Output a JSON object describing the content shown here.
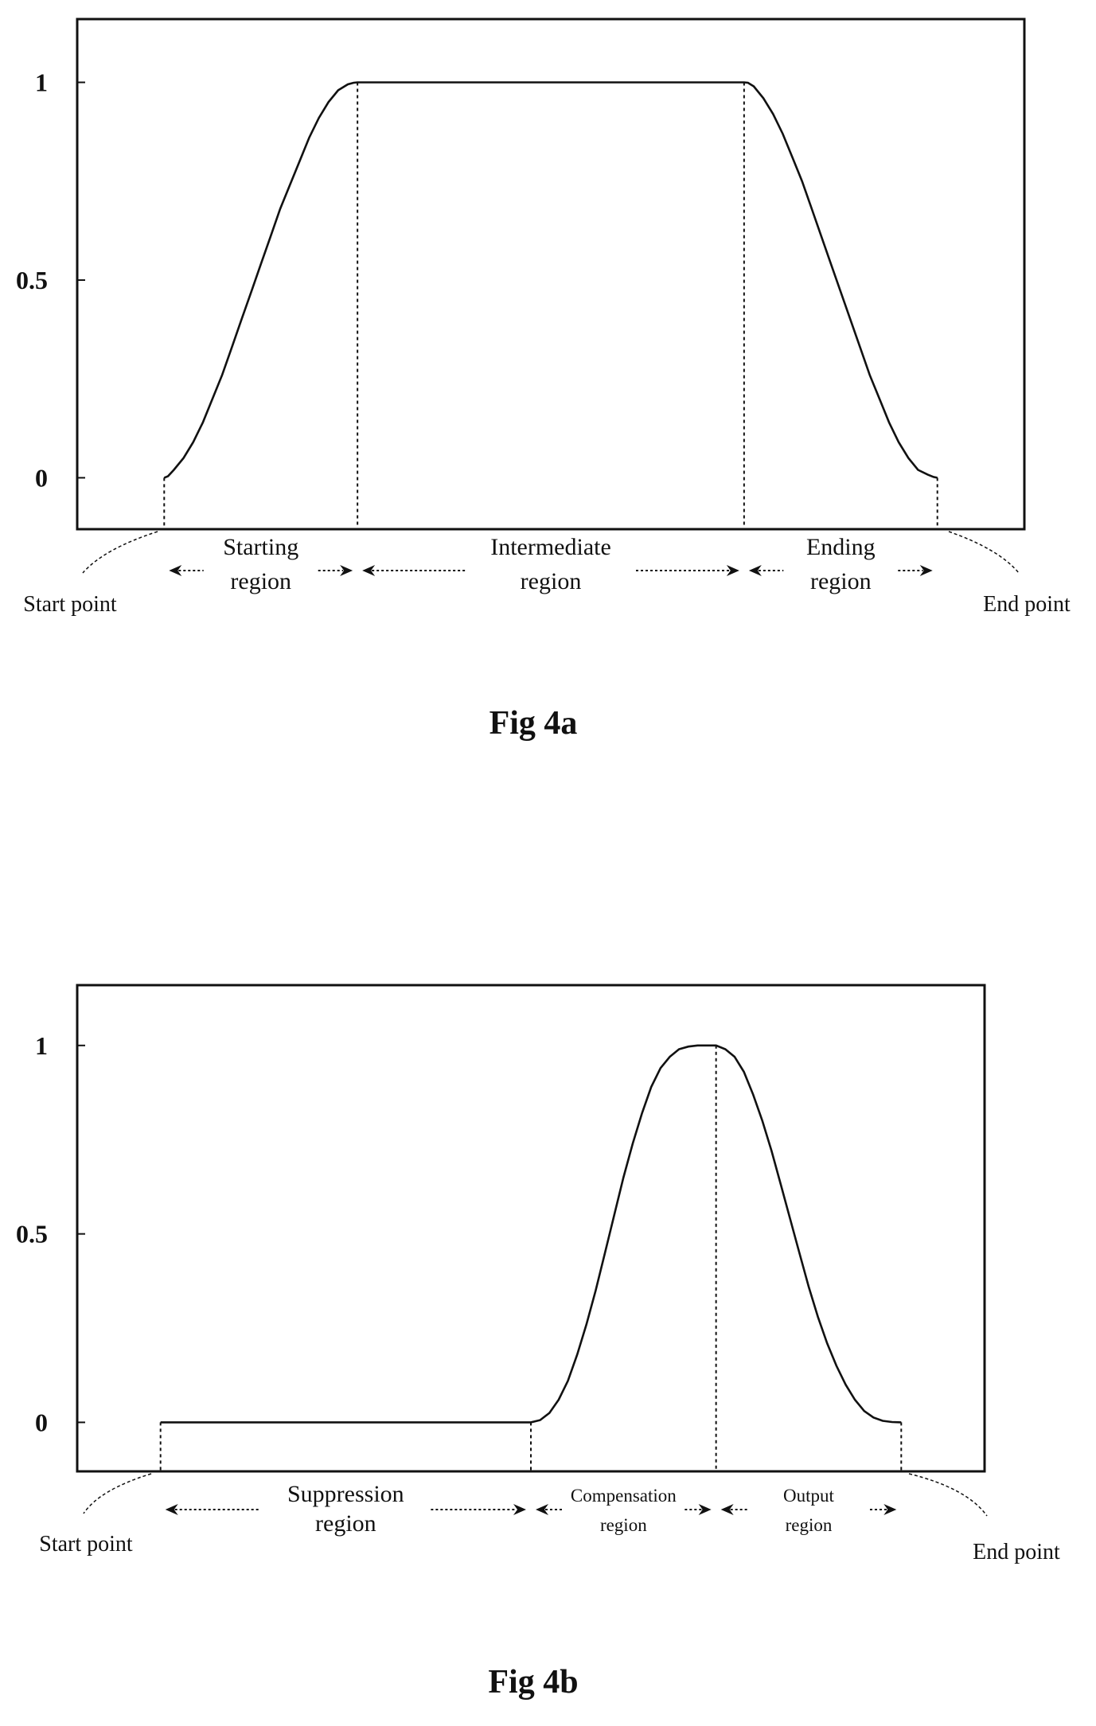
{
  "chart_data": [
    {
      "type": "line",
      "caption": "Fig 4a",
      "x": [
        0,
        0.02,
        0.05,
        0.1,
        0.15,
        0.2,
        0.25,
        0.3,
        0.35,
        0.4,
        0.45,
        0.5,
        0.55,
        0.6,
        0.65,
        0.7,
        0.75,
        0.8,
        0.85,
        0.9,
        0.95,
        0.98,
        1.0,
        1.0,
        1.5,
        2.0,
        2.5,
        3.0,
        3.0,
        3.02,
        3.05,
        3.1,
        3.15,
        3.2,
        3.25,
        3.3,
        3.35,
        3.4,
        3.45,
        3.5,
        3.55,
        3.6,
        3.65,
        3.7,
        3.75,
        3.8,
        3.85,
        3.9,
        3.95,
        3.98,
        4.0
      ],
      "series": [
        {
          "values": [
            0,
            0.004,
            0.02,
            0.05,
            0.09,
            0.14,
            0.2,
            0.26,
            0.33,
            0.4,
            0.47,
            0.54,
            0.61,
            0.68,
            0.74,
            0.8,
            0.86,
            0.91,
            0.95,
            0.98,
            0.995,
            0.999,
            1.0,
            1.0,
            1.0,
            1.0,
            1.0,
            1.0,
            1.0,
            0.999,
            0.99,
            0.96,
            0.92,
            0.87,
            0.81,
            0.75,
            0.68,
            0.61,
            0.54,
            0.47,
            0.4,
            0.33,
            0.26,
            0.2,
            0.14,
            0.09,
            0.05,
            0.02,
            0.008,
            0.002,
            0
          ]
        }
      ],
      "yticks": [
        "0",
        "0.5",
        "1"
      ],
      "ylim": [
        -0.13,
        1.16
      ],
      "xlim": [
        -0.45,
        4.45
      ],
      "grid": false,
      "boundaries": [
        0,
        1,
        3,
        4
      ],
      "regions": [
        {
          "lines": [
            "Starting",
            "region"
          ],
          "from": 0,
          "to": 1
        },
        {
          "lines": [
            "Intermediate",
            "region"
          ],
          "from": 1,
          "to": 3
        },
        {
          "lines": [
            "Ending",
            "region"
          ],
          "from": 3,
          "to": 4
        }
      ],
      "start_label": "Start point",
      "end_label": "End point"
    },
    {
      "type": "line",
      "caption": "Fig 4b",
      "x": [
        0,
        1.0,
        2.0,
        2.0,
        2.05,
        2.1,
        2.15,
        2.2,
        2.25,
        2.3,
        2.35,
        2.4,
        2.45,
        2.5,
        2.55,
        2.6,
        2.65,
        2.7,
        2.75,
        2.8,
        2.85,
        2.9,
        2.95,
        3.0,
        3.0,
        3.05,
        3.1,
        3.15,
        3.2,
        3.25,
        3.3,
        3.35,
        3.4,
        3.45,
        3.5,
        3.55,
        3.6,
        3.65,
        3.7,
        3.75,
        3.8,
        3.85,
        3.9,
        3.95,
        4.0
      ],
      "series": [
        {
          "values": [
            0,
            0,
            0,
            0,
            0.006,
            0.025,
            0.06,
            0.11,
            0.18,
            0.26,
            0.35,
            0.45,
            0.55,
            0.65,
            0.74,
            0.82,
            0.89,
            0.94,
            0.97,
            0.99,
            0.997,
            1.0,
            1.0,
            1.0,
            1.0,
            0.99,
            0.97,
            0.93,
            0.87,
            0.8,
            0.72,
            0.63,
            0.54,
            0.45,
            0.36,
            0.28,
            0.21,
            0.15,
            0.1,
            0.06,
            0.03,
            0.013,
            0.004,
            0.001,
            0
          ]
        }
      ],
      "yticks": [
        "0",
        "0.5",
        "1"
      ],
      "ylim": [
        -0.13,
        1.16
      ],
      "xlim": [
        -0.45,
        4.45
      ],
      "grid": false,
      "boundaries": [
        0,
        2,
        3,
        4
      ],
      "regions": [
        {
          "lines": [
            "Suppression",
            "region"
          ],
          "from": 0,
          "to": 2
        },
        {
          "lines": [
            "Compensation",
            "region"
          ],
          "from": 2,
          "to": 3
        },
        {
          "lines": [
            "Output",
            "region"
          ],
          "from": 3,
          "to": 4
        }
      ],
      "start_label": "Start point",
      "end_label": "End point"
    }
  ]
}
